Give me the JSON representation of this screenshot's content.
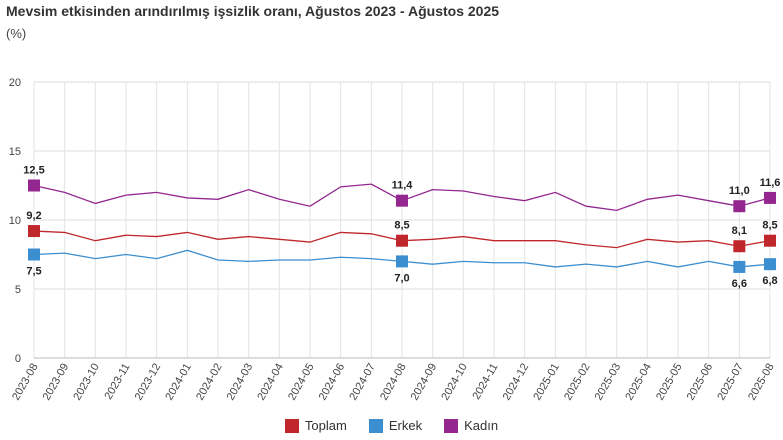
{
  "title": "Mevsim etkisinden arındırılmış işsizlik oranı, Ağustos 2023 - Ağustos 2025",
  "unit_label": "(%)",
  "chart_data": {
    "type": "line",
    "title": "Mevsim etkisinden arındırılmış işsizlik oranı, Ağustos 2023 - Ağustos 2025",
    "xlabel": "",
    "ylabel": "(%)",
    "ylim": [
      0,
      20
    ],
    "yticks": [
      0,
      5,
      10,
      15,
      20
    ],
    "grid": true,
    "legend_position": "bottom-center",
    "categories": [
      "2023-08",
      "2023-09",
      "2023-10",
      "2023-11",
      "2023-12",
      "2024-01",
      "2024-02",
      "2024-03",
      "2024-04",
      "2024-05",
      "2024-06",
      "2024-07",
      "2024-08",
      "2024-09",
      "2024-10",
      "2024-11",
      "2024-12",
      "2025-01",
      "2025-02",
      "2025-03",
      "2025-04",
      "2025-05",
      "2025-06",
      "2025-07",
      "2025-08"
    ],
    "series": [
      {
        "name": "Toplam",
        "color": "#C0272D",
        "values": [
          9.2,
          9.1,
          8.5,
          8.9,
          8.8,
          9.1,
          8.6,
          8.8,
          8.6,
          8.4,
          9.1,
          9.0,
          8.5,
          8.6,
          8.8,
          8.5,
          8.5,
          8.5,
          8.2,
          8.0,
          8.6,
          8.4,
          8.5,
          8.1,
          8.5
        ],
        "labels": [
          {
            "index": 0,
            "text": "9,2",
            "pos": "above"
          },
          {
            "index": 12,
            "text": "8,5",
            "pos": "above"
          },
          {
            "index": 23,
            "text": "8,1",
            "pos": "above"
          },
          {
            "index": 24,
            "text": "8,5",
            "pos": "above"
          }
        ]
      },
      {
        "name": "Erkek",
        "color": "#3B8ED0",
        "values": [
          7.5,
          7.6,
          7.2,
          7.5,
          7.2,
          7.8,
          7.1,
          7.0,
          7.1,
          7.1,
          7.3,
          7.2,
          7.0,
          6.8,
          7.0,
          6.9,
          6.9,
          6.6,
          6.8,
          6.6,
          7.0,
          6.6,
          7.0,
          6.6,
          6.8
        ],
        "labels": [
          {
            "index": 0,
            "text": "7,5",
            "pos": "below"
          },
          {
            "index": 12,
            "text": "7,0",
            "pos": "below"
          },
          {
            "index": 23,
            "text": "6,6",
            "pos": "below"
          },
          {
            "index": 24,
            "text": "6,8",
            "pos": "below"
          }
        ]
      },
      {
        "name": "Kadın",
        "color": "#93278F",
        "values": [
          12.5,
          12.0,
          11.2,
          11.8,
          12.0,
          11.6,
          11.5,
          12.2,
          11.5,
          11.0,
          12.4,
          12.6,
          11.4,
          12.2,
          12.1,
          11.7,
          11.4,
          12.0,
          11.0,
          10.7,
          11.5,
          11.8,
          11.4,
          11.0,
          11.6
        ],
        "labels": [
          {
            "index": 0,
            "text": "12,5",
            "pos": "above"
          },
          {
            "index": 12,
            "text": "11,4",
            "pos": "above"
          },
          {
            "index": 23,
            "text": "11,0",
            "pos": "above"
          },
          {
            "index": 24,
            "text": "11,6",
            "pos": "above"
          }
        ]
      }
    ]
  }
}
